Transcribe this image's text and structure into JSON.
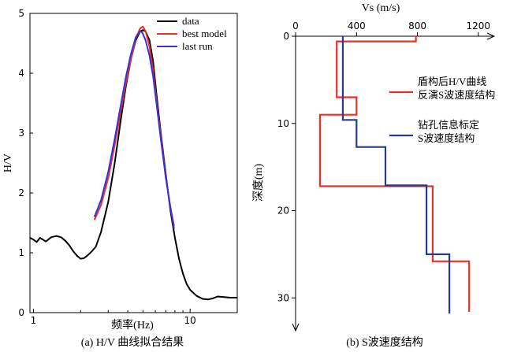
{
  "chart_data": [
    {
      "type": "line",
      "panel_caption": "(a) H/V 曲线拟合结果",
      "xlabel": "频率(Hz)",
      "ylabel": "H/V",
      "xscale": "log",
      "xlim": [
        0.95,
        20
      ],
      "ylim": [
        0,
        5
      ],
      "xticks": [
        {
          "value": 1,
          "label": "1"
        },
        {
          "value": 10,
          "label": "10"
        }
      ],
      "yticks": [
        {
          "value": 0,
          "label": "0"
        },
        {
          "value": 1,
          "label": "1"
        },
        {
          "value": 2,
          "label": "2"
        },
        {
          "value": 3,
          "label": "3"
        },
        {
          "value": 4,
          "label": "4"
        },
        {
          "value": 5,
          "label": "5"
        }
      ],
      "legend": {
        "position": "top-right"
      },
      "series": [
        {
          "name": "data",
          "color": "#000000",
          "points": [
            [
              0.95,
              1.25
            ],
            [
              1.0,
              1.22
            ],
            [
              1.05,
              1.18
            ],
            [
              1.1,
              1.25
            ],
            [
              1.2,
              1.19
            ],
            [
              1.3,
              1.26
            ],
            [
              1.4,
              1.28
            ],
            [
              1.5,
              1.26
            ],
            [
              1.6,
              1.2
            ],
            [
              1.7,
              1.12
            ],
            [
              1.8,
              1.02
            ],
            [
              1.9,
              0.95
            ],
            [
              2.0,
              0.9
            ],
            [
              2.1,
              0.91
            ],
            [
              2.2,
              0.95
            ],
            [
              2.35,
              1.02
            ],
            [
              2.5,
              1.1
            ],
            [
              2.7,
              1.35
            ],
            [
              3.0,
              1.85
            ],
            [
              3.3,
              2.5
            ],
            [
              3.6,
              3.2
            ],
            [
              3.9,
              3.8
            ],
            [
              4.2,
              4.25
            ],
            [
              4.5,
              4.55
            ],
            [
              4.8,
              4.7
            ],
            [
              5.0,
              4.72
            ],
            [
              5.2,
              4.7
            ],
            [
              5.5,
              4.55
            ],
            [
              5.8,
              4.2
            ],
            [
              6.1,
              3.65
            ],
            [
              6.5,
              3.0
            ],
            [
              7.0,
              2.3
            ],
            [
              7.5,
              1.7
            ],
            [
              8.0,
              1.25
            ],
            [
              8.5,
              0.9
            ],
            [
              9.0,
              0.65
            ],
            [
              9.5,
              0.48
            ],
            [
              10.0,
              0.38
            ],
            [
              11.0,
              0.28
            ],
            [
              12.0,
              0.23
            ],
            [
              13.0,
              0.22
            ],
            [
              14.0,
              0.24
            ],
            [
              15.0,
              0.27
            ],
            [
              16.5,
              0.26
            ],
            [
              18.0,
              0.25
            ],
            [
              20.0,
              0.25
            ]
          ]
        },
        {
          "name": "best model",
          "color": "#e8302a",
          "points": [
            [
              2.45,
              1.55
            ],
            [
              2.7,
              1.8
            ],
            [
              3.0,
              2.25
            ],
            [
              3.3,
              2.8
            ],
            [
              3.6,
              3.35
            ],
            [
              3.9,
              3.85
            ],
            [
              4.2,
              4.25
            ],
            [
              4.5,
              4.58
            ],
            [
              4.8,
              4.75
            ],
            [
              5.0,
              4.78
            ],
            [
              5.2,
              4.7
            ],
            [
              5.5,
              4.45
            ],
            [
              5.8,
              4.05
            ],
            [
              6.1,
              3.55
            ],
            [
              6.5,
              2.95
            ],
            [
              7.0,
              2.25
            ],
            [
              7.5,
              1.75
            ],
            [
              7.9,
              1.45
            ]
          ]
        },
        {
          "name": "last run",
          "color": "#3b2fd8",
          "points": [
            [
              2.45,
              1.6
            ],
            [
              2.7,
              1.88
            ],
            [
              3.0,
              2.35
            ],
            [
              3.3,
              2.9
            ],
            [
              3.6,
              3.45
            ],
            [
              3.9,
              3.95
            ],
            [
              4.2,
              4.33
            ],
            [
              4.5,
              4.6
            ],
            [
              4.8,
              4.7
            ],
            [
              4.95,
              4.68
            ],
            [
              5.2,
              4.55
            ],
            [
              5.5,
              4.3
            ],
            [
              5.8,
              3.95
            ],
            [
              6.1,
              3.5
            ],
            [
              6.5,
              2.9
            ],
            [
              7.0,
              2.25
            ],
            [
              7.5,
              1.75
            ],
            [
              7.9,
              1.4
            ]
          ]
        }
      ]
    },
    {
      "type": "line",
      "panel_caption": "(b) S波速度结构",
      "xlabel": "Vs (m/s)",
      "ylabel": "深度(m)",
      "xlim": [
        0,
        1320
      ],
      "ylim": [
        0,
        32.5
      ],
      "y_inverted": true,
      "x_axis_position": "top",
      "xticks": [
        {
          "value": 0,
          "label": "0"
        },
        {
          "value": 400,
          "label": "400"
        },
        {
          "value": 800,
          "label": "800"
        },
        {
          "value": 1200,
          "label": "1200"
        }
      ],
      "yticks": [
        {
          "value": 0,
          "label": "0"
        },
        {
          "value": 10,
          "label": "10"
        },
        {
          "value": 20,
          "label": "20"
        },
        {
          "value": 30,
          "label": "30"
        }
      ],
      "legend": {
        "position": "right"
      },
      "series": [
        {
          "name": "盾构后H/V曲线\n反演S波速度结构",
          "color": "#e8302a",
          "points": [
            [
              790,
              0
            ],
            [
              790,
              0.6
            ],
            [
              270,
              0.6
            ],
            [
              270,
              7.0
            ],
            [
              400,
              7.0
            ],
            [
              400,
              9.0
            ],
            [
              160,
              9.0
            ],
            [
              160,
              17.2
            ],
            [
              900,
              17.2
            ],
            [
              900,
              25.8
            ],
            [
              1140,
              25.8
            ],
            [
              1140,
              31.6
            ]
          ]
        },
        {
          "name": "钻孔信息标定\nS波速度结构",
          "color": "#283a8c",
          "points": [
            [
              310,
              0
            ],
            [
              310,
              9.6
            ],
            [
              400,
              9.6
            ],
            [
              400,
              12.7
            ],
            [
              590,
              12.7
            ],
            [
              590,
              17.1
            ],
            [
              860,
              17.1
            ],
            [
              860,
              25.0
            ],
            [
              1010,
              25.0
            ],
            [
              1010,
              31.8
            ]
          ]
        }
      ]
    }
  ]
}
